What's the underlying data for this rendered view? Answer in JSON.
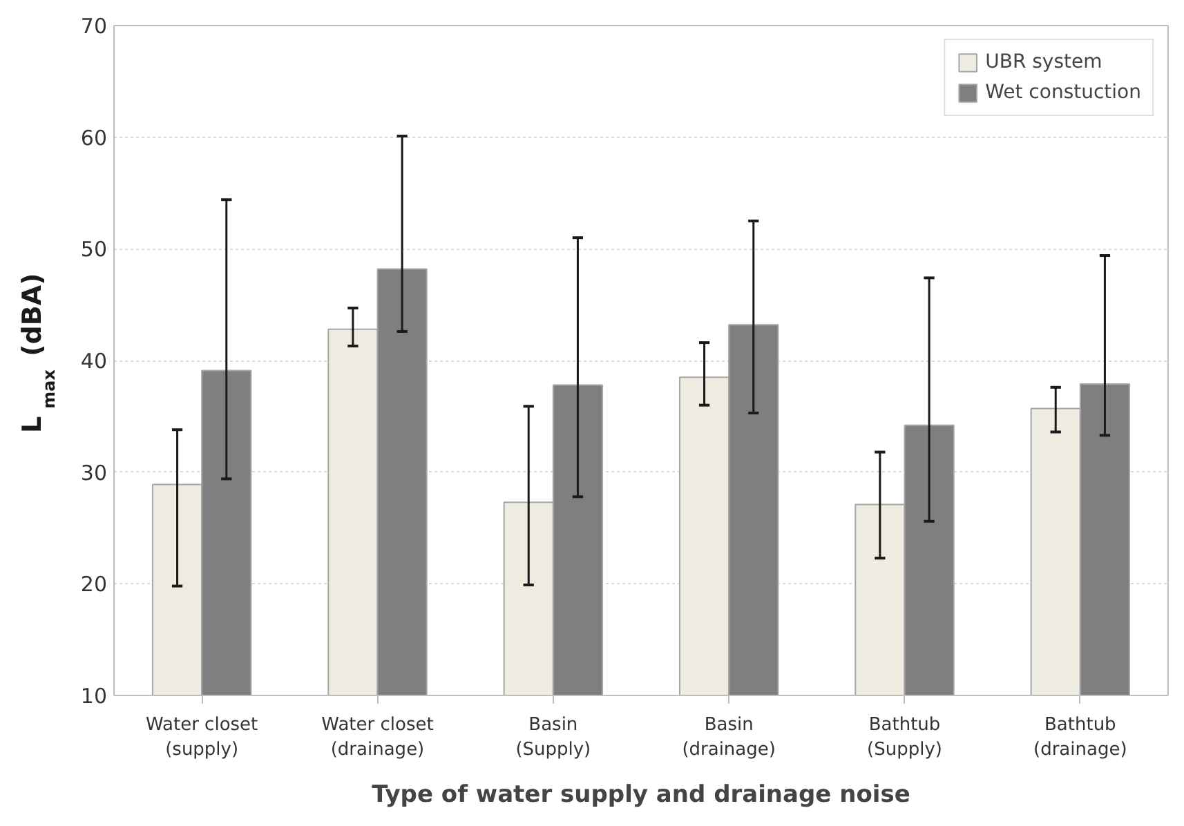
{
  "chart_data": {
    "type": "bar",
    "xlabel": "Type of water supply and drainage noise",
    "ylabel": "L$_{max}$ (dBA)",
    "categories": [
      "Water closet\n(supply)",
      "Water closet\n(drainage)",
      "Basin\n(Supply)",
      "Basin\n(drainage)",
      "Bathtub\n(Supply)",
      "Bathtub\n(drainage)"
    ],
    "series": [
      {
        "name": "UBR system",
        "color": "#eeebe0",
        "values": [
          28.9,
          42.8,
          27.3,
          38.5,
          27.1,
          35.7
        ],
        "errors": [
          [
            19.8,
            33.8
          ],
          [
            41.3,
            44.7
          ],
          [
            19.9,
            35.9
          ],
          [
            36.0,
            41.6
          ],
          [
            22.3,
            31.8
          ],
          [
            33.6,
            37.6
          ]
        ]
      },
      {
        "name": "Wet constuction",
        "color": "#7f7f7f",
        "values": [
          39.1,
          48.2,
          37.8,
          43.2,
          34.2,
          37.9
        ],
        "errors": [
          [
            29.4,
            54.4
          ],
          [
            42.6,
            60.1
          ],
          [
            27.8,
            51.0
          ],
          [
            35.3,
            52.5
          ],
          [
            25.6,
            47.4
          ],
          [
            33.3,
            49.4
          ]
        ]
      }
    ],
    "ylim": [
      10,
      70
    ],
    "yticks": [
      10,
      20,
      30,
      40,
      50,
      60,
      70
    ],
    "grid": "y",
    "legend": "top right"
  }
}
